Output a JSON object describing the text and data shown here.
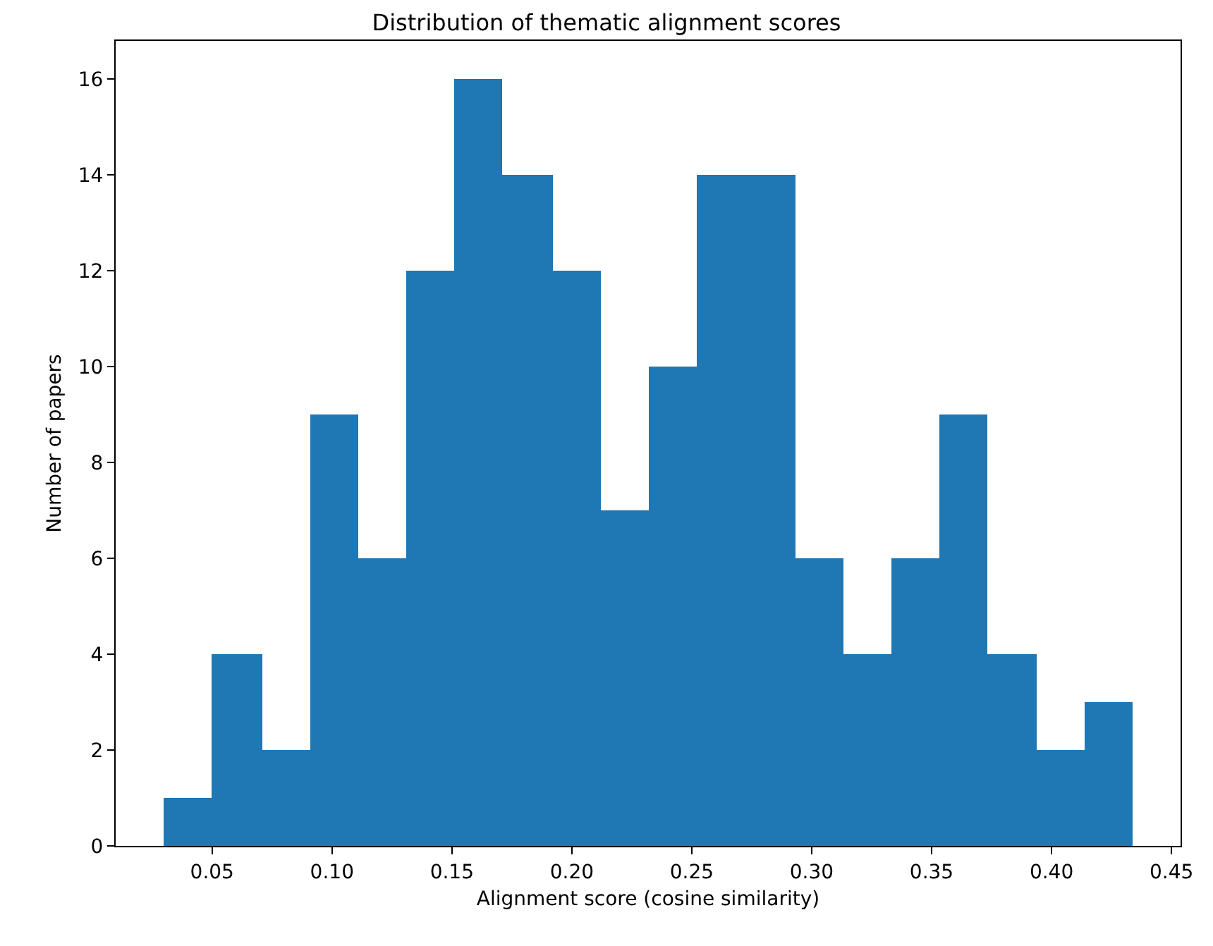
{
  "chart_data": {
    "type": "histogram",
    "title": "Distribution of thematic alignment scores",
    "xlabel": "Alignment score (cosine similarity)",
    "ylabel": "Number of papers",
    "bins": [
      0.03,
      0.05,
      0.071,
      0.091,
      0.111,
      0.131,
      0.151,
      0.171,
      0.192,
      0.212,
      0.232,
      0.252,
      0.272,
      0.293,
      0.313,
      0.333,
      0.353,
      0.373,
      0.394,
      0.414,
      0.434
    ],
    "values": [
      1,
      4,
      2,
      9,
      6,
      12,
      16,
      14,
      12,
      7,
      10,
      14,
      14,
      6,
      4,
      6,
      9,
      4,
      2,
      3
    ],
    "color": "#1f77b4",
    "xlim": [
      0.0098,
      0.4538
    ],
    "xticks": [
      0.05,
      {
        "value": 0.1,
        "label": "0.10"
      },
      0.15,
      {
        "value": 0.2,
        "label": "0.20"
      },
      0.25,
      {
        "value": 0.3,
        "label": "0.30"
      },
      0.35,
      {
        "value": 0.4,
        "label": "0.40"
      },
      0.45
    ],
    "ylim": [
      0,
      16.8
    ],
    "yticks": [
      0,
      2,
      4,
      6,
      8,
      10,
      12,
      14,
      16
    ],
    "grid": false,
    "legend": false
  }
}
